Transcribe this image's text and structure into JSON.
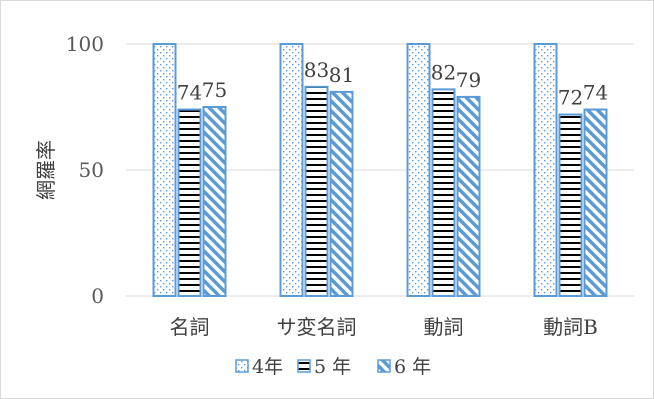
{
  "chart_data": {
    "type": "bar",
    "title": "",
    "xlabel": "",
    "ylabel": "網羅率",
    "categories": [
      "名詞",
      "サ変名詞",
      "動詞",
      "動詞B"
    ],
    "series": [
      {
        "name": "4年",
        "values": [
          100,
          100,
          100,
          100
        ],
        "pattern": "dots",
        "labels": [
          "",
          "",
          "",
          ""
        ]
      },
      {
        "name": "5 年",
        "values": [
          74,
          83,
          82,
          72
        ],
        "pattern": "hstripes",
        "labels": [
          "74",
          "83",
          "82",
          "72"
        ]
      },
      {
        "name": "6 年",
        "values": [
          75,
          81,
          79,
          74
        ],
        "pattern": "diagonal",
        "labels": [
          "75",
          "81",
          "79",
          "74"
        ]
      }
    ],
    "ylim": [
      0,
      100
    ],
    "yticks": [
      0,
      50,
      100
    ],
    "grid": true,
    "legend": "bottom",
    "colors": {
      "bar_outline": "#5b9bd5",
      "stripe": "#000000",
      "grid": "#d9d9d9",
      "text": "#404040",
      "axis_text": "#595959"
    }
  }
}
